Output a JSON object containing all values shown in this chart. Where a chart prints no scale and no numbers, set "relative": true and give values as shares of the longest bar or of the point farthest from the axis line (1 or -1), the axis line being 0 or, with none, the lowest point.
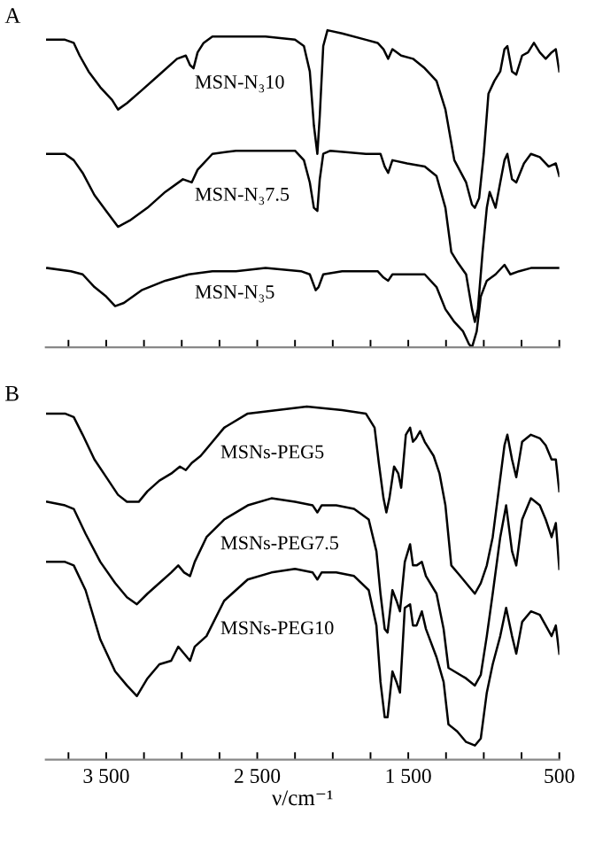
{
  "chart_data": [
    {
      "type": "line",
      "title": "A",
      "relative": true,
      "tick_labels": false,
      "grid": false,
      "legend": false,
      "xlim": [
        3900,
        500
      ],
      "xticks": [
        {
          "value": 3750,
          "label": null
        },
        {
          "value": 3500,
          "label": null
        },
        {
          "value": 3250,
          "label": null
        },
        {
          "value": 3000,
          "label": null
        },
        {
          "value": 2750,
          "label": null
        },
        {
          "value": 2500,
          "label": null
        },
        {
          "value": 2250,
          "label": null
        },
        {
          "value": 2000,
          "label": null
        },
        {
          "value": 1750,
          "label": null
        },
        {
          "value": 1500,
          "label": null
        },
        {
          "value": 1250,
          "label": null
        },
        {
          "value": 1000,
          "label": null
        },
        {
          "value": 750,
          "label": null
        },
        {
          "value": 500,
          "label": null
        }
      ],
      "series": [
        {
          "name": "MSN-N₃10",
          "color": "#000000",
          "x": [
            3891,
            3773,
            3715,
            3676,
            3617,
            3539,
            3461,
            3422,
            3363,
            3266,
            3148,
            3031,
            2973,
            2945,
            2922,
            2895,
            2855,
            2797,
            2641,
            2445,
            2250,
            2191,
            2152,
            2125,
            2102,
            2086,
            2063,
            2035,
            1938,
            1781,
            1703,
            1664,
            1633,
            1605,
            1547,
            1469,
            1391,
            1313,
            1254,
            1195,
            1117,
            1078,
            1059,
            1031,
            1000,
            969,
            930,
            891,
            863,
            844,
            813,
            785,
            746,
            707,
            668,
            629,
            590,
            551,
            523,
            500
          ],
          "values": [
            0.97,
            0.97,
            0.96,
            0.92,
            0.87,
            0.82,
            0.78,
            0.75,
            0.77,
            0.81,
            0.86,
            0.91,
            0.92,
            0.89,
            0.88,
            0.93,
            0.96,
            0.98,
            0.98,
            0.98,
            0.97,
            0.95,
            0.87,
            0.7,
            0.61,
            0.73,
            0.95,
            1.0,
            0.99,
            0.97,
            0.96,
            0.94,
            0.91,
            0.94,
            0.92,
            0.91,
            0.88,
            0.84,
            0.75,
            0.59,
            0.52,
            0.45,
            0.44,
            0.47,
            0.61,
            0.8,
            0.84,
            0.87,
            0.94,
            0.95,
            0.87,
            0.86,
            0.92,
            0.93,
            0.96,
            0.93,
            0.91,
            0.93,
            0.94,
            0.87
          ]
        },
        {
          "name": "MSN-N₃7.5",
          "color": "#000000",
          "x": [
            3891,
            3773,
            3715,
            3656,
            3578,
            3500,
            3422,
            3344,
            3227,
            3109,
            2992,
            2934,
            2895,
            2855,
            2797,
            2641,
            2445,
            2250,
            2191,
            2152,
            2125,
            2102,
            2086,
            2063,
            2016,
            1781,
            1684,
            1656,
            1633,
            1605,
            1508,
            1391,
            1313,
            1254,
            1215,
            1176,
            1117,
            1078,
            1059,
            1039,
            1008,
            980,
            961,
            922,
            891,
            863,
            844,
            813,
            785,
            734,
            688,
            629,
            570,
            523,
            500
          ],
          "values": [
            0.61,
            0.61,
            0.59,
            0.55,
            0.48,
            0.43,
            0.38,
            0.4,
            0.44,
            0.49,
            0.53,
            0.52,
            0.56,
            0.58,
            0.61,
            0.62,
            0.62,
            0.62,
            0.59,
            0.52,
            0.44,
            0.43,
            0.53,
            0.61,
            0.62,
            0.61,
            0.61,
            0.57,
            0.55,
            0.59,
            0.58,
            0.57,
            0.54,
            0.44,
            0.3,
            0.27,
            0.23,
            0.12,
            0.08,
            0.12,
            0.3,
            0.44,
            0.49,
            0.44,
            0.52,
            0.59,
            0.61,
            0.53,
            0.52,
            0.58,
            0.61,
            0.6,
            0.57,
            0.58,
            0.54
          ]
        },
        {
          "name": "MSN-N₃5",
          "color": "#000000",
          "x": [
            3891,
            3734,
            3656,
            3578,
            3500,
            3441,
            3383,
            3266,
            3109,
            2953,
            2797,
            2641,
            2445,
            2211,
            2152,
            2113,
            2094,
            2063,
            1938,
            1703,
            1664,
            1633,
            1605,
            1391,
            1313,
            1254,
            1195,
            1137,
            1098,
            1078,
            1047,
            1020,
            980,
            922,
            863,
            824,
            766,
            688,
            570,
            500
          ],
          "values": [
            0.25,
            0.24,
            0.23,
            0.19,
            0.16,
            0.13,
            0.14,
            0.18,
            0.21,
            0.23,
            0.24,
            0.24,
            0.25,
            0.24,
            0.23,
            0.18,
            0.19,
            0.23,
            0.24,
            0.24,
            0.22,
            0.21,
            0.23,
            0.23,
            0.19,
            0.12,
            0.08,
            0.05,
            0.01,
            0.0,
            0.05,
            0.16,
            0.21,
            0.23,
            0.26,
            0.23,
            0.24,
            0.25,
            0.25,
            0.25
          ]
        }
      ]
    },
    {
      "type": "line",
      "title": "B",
      "relative": true,
      "tick_labels": "x",
      "grid": false,
      "legend": false,
      "xlabel": "ν/cm⁻¹",
      "xlim": [
        3900,
        500
      ],
      "xticks": [
        {
          "value": 3750,
          "label": null
        },
        {
          "value": 3500,
          "label": "3 500"
        },
        {
          "value": 3250,
          "label": null
        },
        {
          "value": 3000,
          "label": null
        },
        {
          "value": 2750,
          "label": null
        },
        {
          "value": 2500,
          "label": "2 500"
        },
        {
          "value": 2250,
          "label": null
        },
        {
          "value": 2000,
          "label": null
        },
        {
          "value": 1750,
          "label": null
        },
        {
          "value": 1500,
          "label": "1 500"
        },
        {
          "value": 1250,
          "label": null
        },
        {
          "value": 1000,
          "label": null
        },
        {
          "value": 750,
          "label": null
        },
        500
      ],
      "series": [
        {
          "name": "MSNs-PEG5",
          "color": "#000000",
          "x": [
            3891,
            3773,
            3715,
            3656,
            3578,
            3500,
            3422,
            3363,
            3285,
            3227,
            3148,
            3070,
            3012,
            2973,
            2934,
            2875,
            2816,
            2719,
            2563,
            2367,
            2172,
            1938,
            1781,
            1723,
            1695,
            1664,
            1645,
            1625,
            1594,
            1566,
            1547,
            1516,
            1488,
            1469,
            1449,
            1422,
            1391,
            1332,
            1293,
            1254,
            1215,
            1156,
            1098,
            1059,
            1020,
            980,
            941,
            902,
            863,
            844,
            813,
            785,
            746,
            688,
            629,
            590,
            551,
            523,
            500
          ],
          "values": [
            0.98,
            0.98,
            0.97,
            0.92,
            0.85,
            0.8,
            0.75,
            0.73,
            0.73,
            0.76,
            0.79,
            0.81,
            0.83,
            0.82,
            0.84,
            0.86,
            0.89,
            0.94,
            0.98,
            0.99,
            1.0,
            0.99,
            0.98,
            0.94,
            0.84,
            0.74,
            0.7,
            0.74,
            0.83,
            0.81,
            0.77,
            0.92,
            0.94,
            0.9,
            0.91,
            0.93,
            0.9,
            0.86,
            0.81,
            0.72,
            0.55,
            0.52,
            0.49,
            0.47,
            0.5,
            0.55,
            0.63,
            0.76,
            0.89,
            0.92,
            0.85,
            0.8,
            0.9,
            0.92,
            0.91,
            0.89,
            0.85,
            0.85,
            0.76
          ]
        },
        {
          "name": "MSNs-PEG7.5",
          "color": "#000000",
          "x": [
            3891,
            3773,
            3715,
            3637,
            3539,
            3441,
            3363,
            3297,
            3227,
            3148,
            3070,
            3023,
            2984,
            2945,
            2914,
            2836,
            2719,
            2563,
            2406,
            2250,
            2133,
            2102,
            2074,
            1977,
            1859,
            1762,
            1711,
            1684,
            1656,
            1637,
            1605,
            1578,
            1555,
            1523,
            1488,
            1469,
            1445,
            1410,
            1383,
            1313,
            1266,
            1234,
            1195,
            1117,
            1059,
            1020,
            980,
            941,
            891,
            852,
            813,
            785,
            746,
            688,
            629,
            590,
            551,
            523,
            500
          ],
          "values": [
            0.73,
            0.72,
            0.71,
            0.64,
            0.56,
            0.5,
            0.46,
            0.44,
            0.47,
            0.5,
            0.53,
            0.55,
            0.53,
            0.52,
            0.56,
            0.63,
            0.68,
            0.72,
            0.74,
            0.73,
            0.72,
            0.7,
            0.72,
            0.72,
            0.71,
            0.68,
            0.59,
            0.47,
            0.37,
            0.36,
            0.48,
            0.45,
            0.42,
            0.56,
            0.61,
            0.55,
            0.55,
            0.56,
            0.52,
            0.47,
            0.37,
            0.26,
            0.25,
            0.23,
            0.21,
            0.24,
            0.35,
            0.47,
            0.63,
            0.72,
            0.59,
            0.55,
            0.68,
            0.74,
            0.72,
            0.68,
            0.63,
            0.67,
            0.54
          ]
        },
        {
          "name": "MSNs-PEG10",
          "color": "#000000",
          "x": [
            3891,
            3773,
            3715,
            3637,
            3539,
            3441,
            3363,
            3297,
            3227,
            3148,
            3070,
            3023,
            2984,
            2945,
            2914,
            2836,
            2719,
            2563,
            2406,
            2250,
            2133,
            2102,
            2074,
            1977,
            1859,
            1762,
            1711,
            1684,
            1656,
            1637,
            1605,
            1578,
            1555,
            1523,
            1488,
            1469,
            1445,
            1410,
            1383,
            1313,
            1266,
            1234,
            1176,
            1117,
            1059,
            1020,
            980,
            941,
            891,
            852,
            813,
            785,
            746,
            688,
            629,
            590,
            551,
            523,
            500
          ],
          "values": [
            0.56,
            0.56,
            0.55,
            0.48,
            0.34,
            0.25,
            0.21,
            0.18,
            0.23,
            0.27,
            0.28,
            0.32,
            0.3,
            0.28,
            0.32,
            0.35,
            0.45,
            0.51,
            0.53,
            0.54,
            0.53,
            0.51,
            0.53,
            0.53,
            0.52,
            0.48,
            0.38,
            0.22,
            0.12,
            0.12,
            0.25,
            0.22,
            0.19,
            0.43,
            0.44,
            0.38,
            0.38,
            0.42,
            0.37,
            0.29,
            0.22,
            0.1,
            0.08,
            0.05,
            0.04,
            0.06,
            0.19,
            0.27,
            0.35,
            0.43,
            0.35,
            0.3,
            0.39,
            0.42,
            0.41,
            0.38,
            0.35,
            0.38,
            0.3
          ]
        }
      ]
    }
  ]
}
